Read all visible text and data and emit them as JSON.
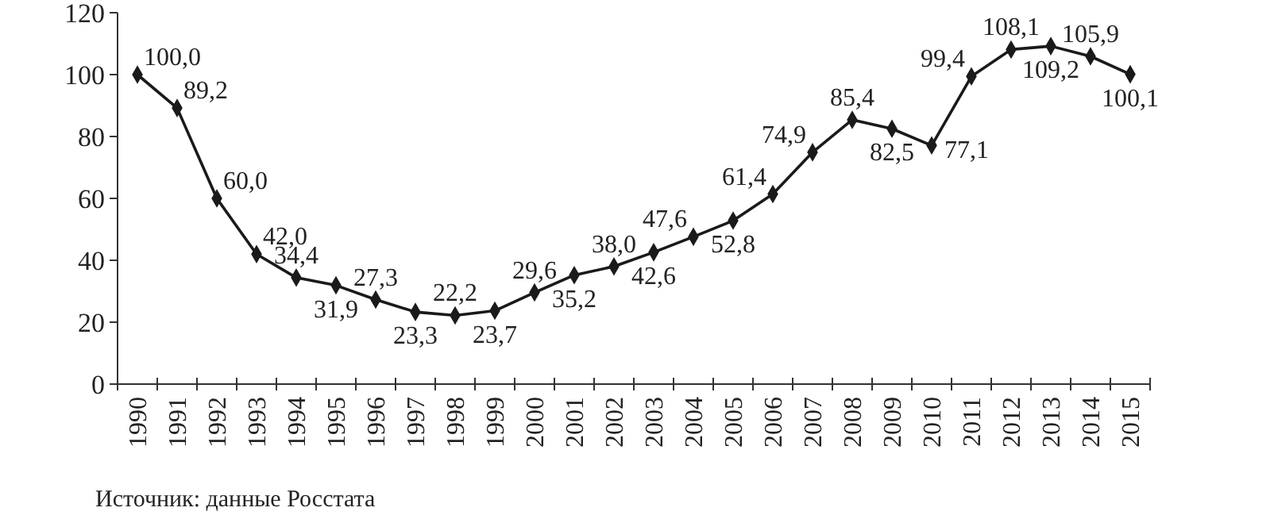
{
  "chart_data": {
    "type": "line",
    "categories": [
      "1990",
      "1991",
      "1992",
      "1993",
      "1994",
      "1995",
      "1996",
      "1997",
      "1998",
      "1999",
      "2000",
      "2001",
      "2002",
      "2003",
      "2004",
      "2005",
      "2006",
      "2007",
      "2008",
      "2009",
      "2010",
      "2011",
      "2012",
      "2013",
      "2014",
      "2015"
    ],
    "series": [
      {
        "color": "#1a1a1a",
        "values": [
          100.0,
          89.2,
          60.0,
          42.0,
          34.4,
          31.9,
          27.3,
          23.3,
          22.2,
          23.7,
          29.6,
          35.2,
          38.0,
          42.6,
          47.6,
          52.8,
          61.4,
          74.9,
          85.4,
          82.5,
          77.1,
          99.4,
          108.1,
          109.2,
          105.9,
          100.1
        ],
        "value_labels": [
          "100,0",
          "89,2",
          "60,0",
          "42,0",
          "34,4",
          "31,9",
          "27,3",
          "23,3",
          "22,2",
          "23,7",
          "29,6",
          "35,2",
          "38,0",
          "42,6",
          "47,6",
          "52,8",
          "61,4",
          "74,9",
          "85,4",
          "82,5",
          "77,1",
          "99,4",
          "108,1",
          "109,2",
          "105,9",
          "100,1"
        ]
      }
    ],
    "ylim": [
      0,
      120
    ],
    "yticks": [
      0,
      20,
      40,
      60,
      80,
      100,
      120
    ],
    "grid": false,
    "marker": "diamond",
    "line_style": "solid",
    "annotations": [
      "Источник: данные Росстата"
    ]
  }
}
